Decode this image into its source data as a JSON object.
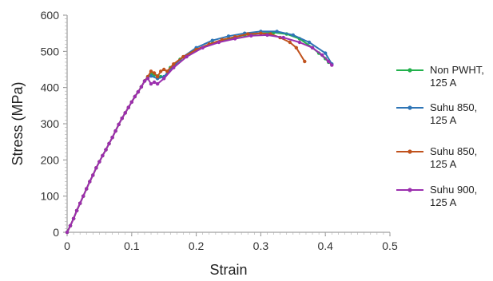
{
  "chart_data": {
    "type": "line",
    "xlabel": "Strain",
    "ylabel": "Stress (MPa)",
    "xlim": [
      0,
      0.5
    ],
    "ylim": [
      0,
      600
    ],
    "xticks": [
      "0",
      "0.1",
      "0.2",
      "0.3",
      "0.4",
      "0.5"
    ],
    "yticks": [
      "0",
      "100",
      "200",
      "300",
      "400",
      "500",
      "600"
    ],
    "grid": false,
    "legend_position": "right",
    "series": [
      {
        "name_lines": [
          "Non PWHT,",
          "125 A"
        ],
        "color": "#22b14c",
        "x": [
          0,
          0.005,
          0.01,
          0.015,
          0.02,
          0.025,
          0.03,
          0.035,
          0.04,
          0.045,
          0.05,
          0.055,
          0.06,
          0.065,
          0.07,
          0.075,
          0.08,
          0.085,
          0.09,
          0.095,
          0.1,
          0.105,
          0.11,
          0.115,
          0.12,
          0.125,
          0.13,
          0.135,
          0.14,
          0.145,
          0.15,
          0.16,
          0.175,
          0.2,
          0.225,
          0.25,
          0.275,
          0.3,
          0.32,
          0.34,
          0.36,
          0.38,
          0.39,
          0.4,
          0.405
        ],
        "y": [
          0,
          18,
          38,
          60,
          80,
          100,
          120,
          140,
          158,
          178,
          195,
          212,
          228,
          245,
          262,
          280,
          298,
          315,
          330,
          345,
          360,
          375,
          388,
          402,
          418,
          430,
          438,
          435,
          432,
          430,
          428,
          455,
          478,
          505,
          522,
          535,
          545,
          550,
          552,
          548,
          535,
          510,
          495,
          480,
          470
        ]
      },
      {
        "name_lines": [
          "Suhu 850,",
          "125 A"
        ],
        "color": "#2e75b6",
        "x": [
          0,
          0.005,
          0.01,
          0.015,
          0.02,
          0.025,
          0.03,
          0.035,
          0.04,
          0.045,
          0.05,
          0.055,
          0.06,
          0.065,
          0.07,
          0.075,
          0.08,
          0.085,
          0.09,
          0.095,
          0.1,
          0.105,
          0.11,
          0.115,
          0.12,
          0.125,
          0.13,
          0.14,
          0.15,
          0.165,
          0.18,
          0.2,
          0.225,
          0.25,
          0.275,
          0.3,
          0.325,
          0.35,
          0.375,
          0.4,
          0.41
        ],
        "y": [
          0,
          18,
          38,
          60,
          80,
          100,
          120,
          140,
          158,
          178,
          195,
          212,
          228,
          245,
          262,
          280,
          298,
          315,
          330,
          345,
          360,
          375,
          388,
          402,
          418,
          430,
          432,
          425,
          430,
          460,
          485,
          510,
          530,
          542,
          550,
          555,
          555,
          545,
          525,
          495,
          465
        ]
      },
      {
        "name_lines": [
          "Suhu 850,",
          "125 A"
        ],
        "color": "#c0521d",
        "x": [
          0,
          0.005,
          0.01,
          0.015,
          0.02,
          0.025,
          0.03,
          0.035,
          0.04,
          0.045,
          0.05,
          0.055,
          0.06,
          0.065,
          0.07,
          0.075,
          0.08,
          0.085,
          0.09,
          0.095,
          0.1,
          0.105,
          0.11,
          0.115,
          0.12,
          0.125,
          0.13,
          0.135,
          0.14,
          0.145,
          0.15,
          0.155,
          0.165,
          0.18,
          0.2,
          0.22,
          0.24,
          0.26,
          0.28,
          0.3,
          0.315,
          0.33,
          0.345,
          0.355,
          0.368
        ],
        "y": [
          0,
          18,
          38,
          60,
          80,
          100,
          120,
          140,
          158,
          178,
          195,
          212,
          228,
          245,
          262,
          280,
          298,
          315,
          330,
          345,
          360,
          375,
          388,
          402,
          418,
          430,
          445,
          440,
          430,
          445,
          450,
          445,
          465,
          485,
          505,
          520,
          532,
          540,
          548,
          550,
          548,
          538,
          525,
          510,
          472
        ]
      },
      {
        "name_lines": [
          "Suhu 900,",
          "125 A"
        ],
        "color": "#9b2fae",
        "x": [
          0,
          0.005,
          0.01,
          0.015,
          0.02,
          0.025,
          0.03,
          0.035,
          0.04,
          0.045,
          0.05,
          0.055,
          0.06,
          0.065,
          0.07,
          0.075,
          0.08,
          0.085,
          0.09,
          0.095,
          0.1,
          0.105,
          0.11,
          0.115,
          0.12,
          0.125,
          0.13,
          0.135,
          0.14,
          0.15,
          0.165,
          0.185,
          0.21,
          0.235,
          0.26,
          0.285,
          0.31,
          0.335,
          0.36,
          0.38,
          0.395,
          0.405,
          0.41
        ],
        "y": [
          0,
          18,
          38,
          60,
          80,
          100,
          120,
          140,
          158,
          178,
          195,
          212,
          228,
          245,
          262,
          280,
          298,
          315,
          330,
          345,
          360,
          375,
          388,
          402,
          418,
          425,
          410,
          415,
          410,
          425,
          455,
          485,
          510,
          525,
          535,
          543,
          545,
          538,
          525,
          510,
          490,
          472,
          462
        ]
      }
    ]
  }
}
